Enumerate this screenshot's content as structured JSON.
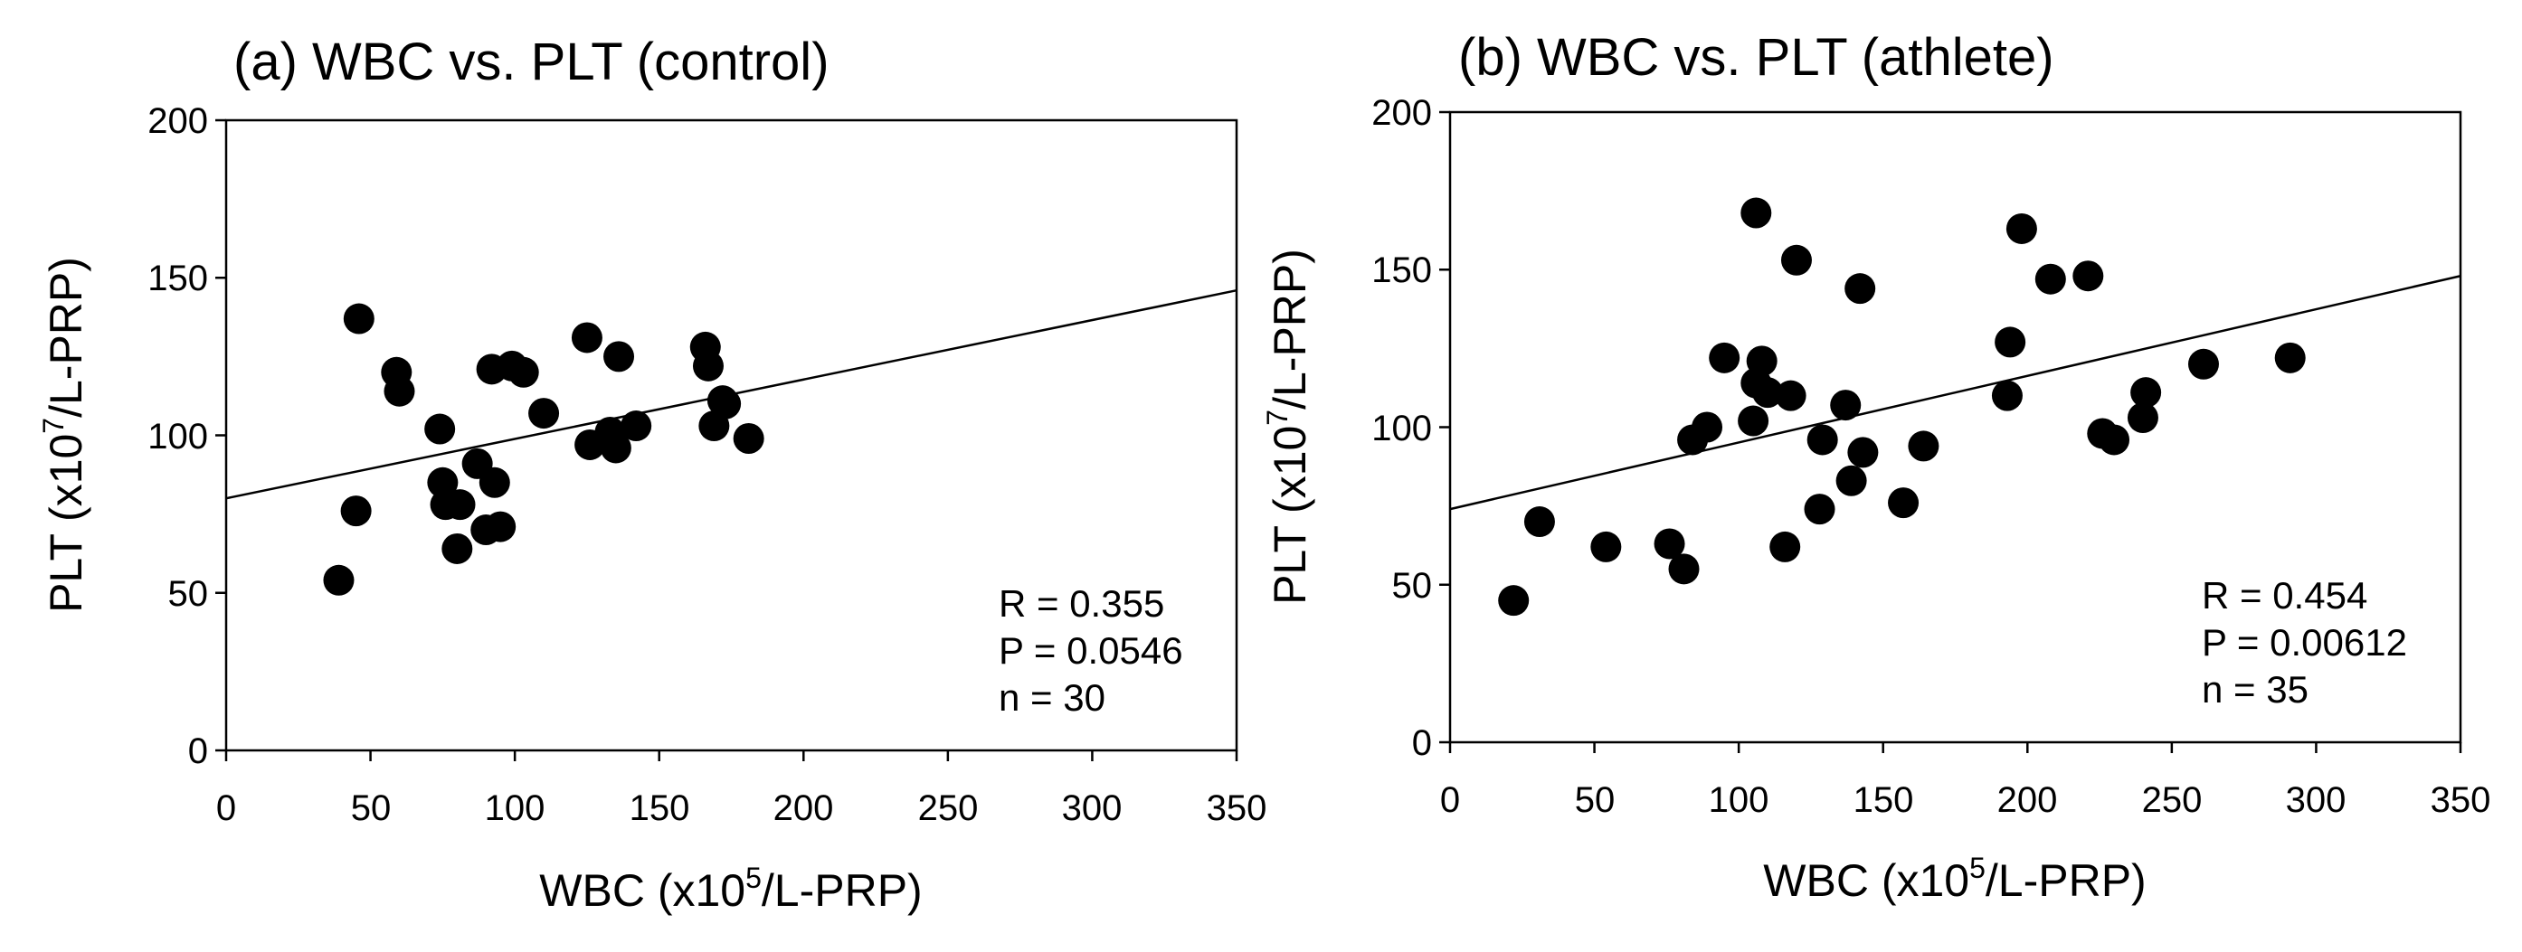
{
  "chart_data": [
    {
      "type": "scatter",
      "title": "(a) WBC vs. PLT (control)",
      "xlabel": {
        "main": "WBC (x10",
        "sup": "5",
        "tail": "/L-PRP)"
      },
      "ylabel": {
        "main": "PLT (x10",
        "sup": "7",
        "tail": "/L-PRP)"
      },
      "xlim": [
        0,
        350
      ],
      "ylim": [
        0,
        200
      ],
      "xticks": [
        0,
        50,
        100,
        150,
        200,
        250,
        300,
        350
      ],
      "yticks": [
        0,
        50,
        100,
        150,
        200
      ],
      "grid": false,
      "fit_line": {
        "x": [
          0,
          350
        ],
        "y": [
          80,
          146
        ]
      },
      "annotations": [
        "R = 0.355",
        "P = 0.0546",
        "n = 30"
      ],
      "series": [
        {
          "name": "control",
          "x": [
            39,
            45,
            46,
            59,
            60,
            74,
            75,
            76,
            80,
            81,
            87,
            90,
            92,
            93,
            95,
            99,
            103,
            110,
            125,
            126,
            133,
            135,
            136,
            142,
            166,
            167,
            169,
            172,
            173,
            181
          ],
          "y": [
            54,
            76,
            137,
            120,
            114,
            102,
            85,
            78,
            64,
            78,
            91,
            70,
            121,
            85,
            71,
            122,
            120,
            107,
            131,
            97,
            101,
            96,
            125,
            103,
            128,
            122,
            103,
            111,
            110,
            99
          ]
        }
      ]
    },
    {
      "type": "scatter",
      "title": "(b) WBC vs. PLT (athlete)",
      "xlabel": {
        "main": "WBC (x10",
        "sup": "5",
        "tail": "/L-PRP)"
      },
      "ylabel": {
        "main": "PLT (x10",
        "sup": "7",
        "tail": "/L-PRP)"
      },
      "xlim": [
        0,
        350
      ],
      "ylim": [
        0,
        200
      ],
      "xticks": [
        0,
        50,
        100,
        150,
        200,
        250,
        300,
        350
      ],
      "yticks": [
        0,
        50,
        100,
        150,
        200
      ],
      "grid": false,
      "fit_line": {
        "x": [
          0,
          350
        ],
        "y": [
          74,
          148
        ]
      },
      "annotations": [
        "R = 0.454",
        "P = 0.00612",
        "n = 35"
      ],
      "series": [
        {
          "name": "athlete",
          "x": [
            22,
            31,
            54,
            76,
            81,
            84,
            89,
            95,
            105,
            106,
            106,
            108,
            110,
            116,
            118,
            120,
            128,
            129,
            137,
            139,
            142,
            143,
            157,
            164,
            193,
            194,
            198,
            208,
            221,
            226,
            230,
            240,
            241,
            261,
            291
          ],
          "y": [
            45,
            70,
            62,
            63,
            55,
            96,
            100,
            122,
            102,
            114,
            168,
            121,
            111,
            62,
            110,
            153,
            74,
            96,
            107,
            83,
            144,
            92,
            76,
            94,
            110,
            127,
            163,
            147,
            148,
            98,
            96,
            103,
            111,
            120,
            122
          ]
        }
      ]
    }
  ]
}
